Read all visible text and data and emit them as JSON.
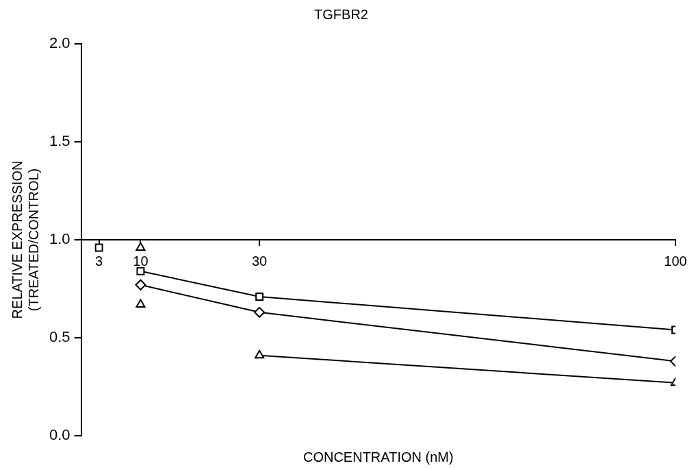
{
  "chart_data": {
    "type": "line",
    "title": "TGFBR2",
    "xlabel": "CONCENTRATION (nM)",
    "ylabel": "RELATIVE EXPRESSION\n(TREATED/CONTROL)",
    "xlim": [
      0,
      100
    ],
    "xticks": [
      3,
      10,
      30,
      100
    ],
    "ylim": [
      0,
      2
    ],
    "yticks": [
      {
        "value": 0,
        "label": "0.0"
      },
      0.5,
      {
        "value": 1,
        "label": "1.0"
      },
      1.5,
      {
        "value": 2,
        "label": "2.0"
      }
    ],
    "grid": false,
    "legend": false,
    "line_style": "solid",
    "series": [
      {
        "type": "scatter",
        "marker": "square",
        "color": "#000000",
        "x": [
          3
        ],
        "values": [
          0.96
        ]
      },
      {
        "type": "line",
        "marker": "square",
        "color": "#000000",
        "x": [
          10,
          30,
          100
        ],
        "values": [
          0.84,
          0.71,
          0.54
        ]
      },
      {
        "type": "line",
        "marker": "diamond",
        "color": "#000000",
        "x": [
          10,
          30,
          100
        ],
        "values": [
          0.77,
          0.63,
          0.38
        ]
      },
      {
        "type": "scatter",
        "marker": "triangle",
        "color": "#000000",
        "x": [
          10,
          10
        ],
        "values": [
          0.96,
          0.67
        ]
      },
      {
        "type": "line",
        "marker": "triangle",
        "color": "#000000",
        "x": [
          30,
          100
        ],
        "values": [
          0.41,
          0.27
        ]
      }
    ]
  }
}
